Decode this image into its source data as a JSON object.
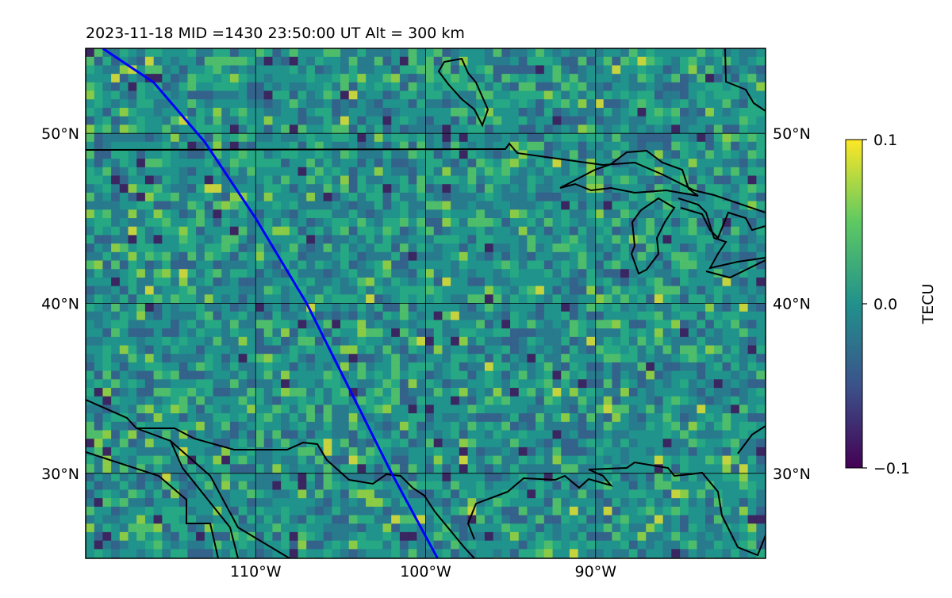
{
  "title": "2023-11-18  MID =1430    23:50:00  UT  Alt = 300 km",
  "map": {
    "lat_range": [
      25,
      55
    ],
    "lon_range": [
      -120,
      -80
    ],
    "gridlines": true,
    "lat_labels": [
      {
        "lat": 50,
        "label": "50°N"
      },
      {
        "lat": 40,
        "label": "40°N"
      },
      {
        "lat": 30,
        "label": "30°N"
      }
    ],
    "lon_labels": [
      {
        "lon": -110,
        "label": "110°W"
      },
      {
        "lon": -100,
        "label": "100°W"
      },
      {
        "lon": -90,
        "label": "90°W"
      }
    ],
    "field": {
      "quantity": "TECU",
      "colormap": "viridis",
      "vmin": -0.1,
      "vmax": 0.1,
      "baseline_value": 0.0
    }
  },
  "colorbar": {
    "label": "TECU",
    "ticks": [
      {
        "value": 0.1,
        "label": "0.1"
      },
      {
        "value": 0.0,
        "label": "0.0"
      },
      {
        "value": -0.1,
        "label": "−0.1"
      }
    ],
    "range": [
      -0.1,
      0.1
    ]
  },
  "track": {
    "color": "#0000ff",
    "points": [
      [
        -119,
        55
      ],
      [
        -116,
        53
      ],
      [
        -113,
        49.5
      ],
      [
        -110,
        45
      ],
      [
        -107,
        40
      ],
      [
        -104.5,
        35
      ],
      [
        -102,
        30
      ],
      [
        -99.3,
        25
      ]
    ]
  },
  "colors": {
    "field_base": "#1f968b",
    "boundary": "#000000",
    "track": "#0000ff"
  }
}
